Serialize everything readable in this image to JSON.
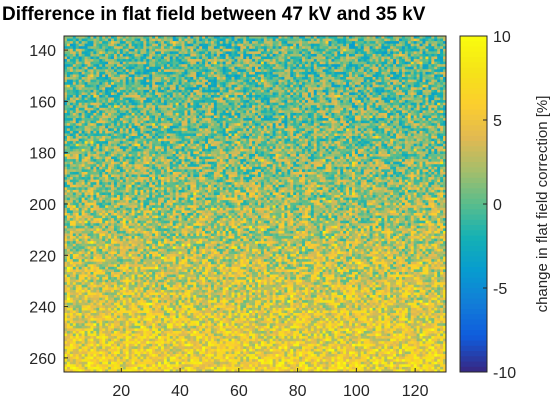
{
  "chart_data": {
    "type": "heatmap",
    "title": "Difference in flat field between 47 kV and 35 kV",
    "xlabel": "",
    "ylabel": "",
    "xlim": [
      1,
      130
    ],
    "ylim": [
      135,
      265
    ],
    "x_ticks": [
      20,
      40,
      60,
      80,
      100,
      120
    ],
    "y_ticks": [
      140,
      160,
      180,
      200,
      220,
      240,
      260
    ],
    "y_reversed": true,
    "colormap": "parula",
    "colorbar": {
      "label": "change in flat field correction [%]",
      "range": [
        -10,
        10
      ],
      "ticks": [
        10,
        5,
        0,
        -5,
        -10
      ]
    },
    "value_trend": {
      "description_of_field": "noisy per-pixel values, mostly between -5 and 10",
      "top_rows_mean": 0,
      "bottom_rows_mean": 6,
      "noise_amplitude": 4
    },
    "grid": false
  }
}
